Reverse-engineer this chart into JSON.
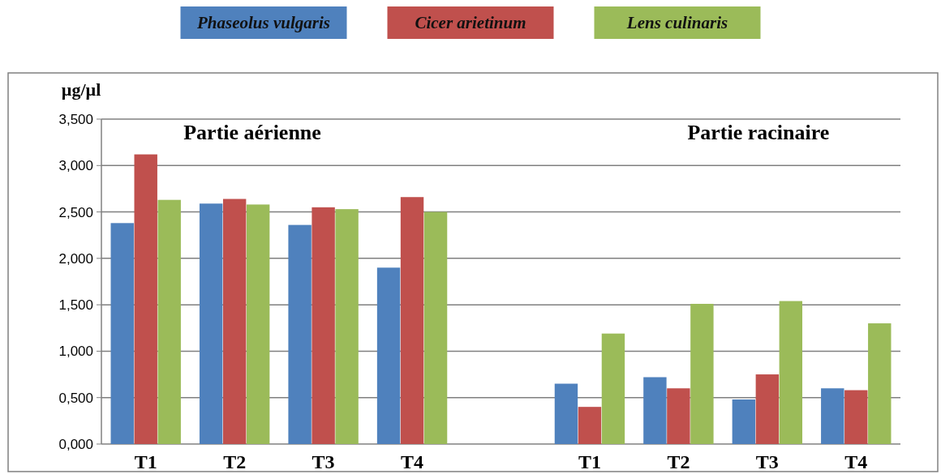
{
  "chart_data": {
    "type": "bar",
    "ylabel": "µg/µl",
    "categories": [
      "T1",
      "T2",
      "T3",
      "T4",
      null,
      "T1",
      "T2",
      "T3",
      "T4"
    ],
    "series": [
      {
        "name": "Phaseolus vulgaris",
        "color": "#4f81bd",
        "values": [
          2.38,
          2.59,
          2.36,
          1.9,
          null,
          0.65,
          0.72,
          0.48,
          0.6
        ]
      },
      {
        "name": "Cicer arietinum",
        "color": "#c0504d",
        "values": [
          3.12,
          2.64,
          2.55,
          2.66,
          null,
          0.4,
          0.6,
          0.75,
          0.58
        ]
      },
      {
        "name": "Lens culinaris",
        "color": "#9bbb59",
        "values": [
          2.63,
          2.58,
          2.53,
          2.5,
          null,
          1.19,
          1.51,
          1.54,
          1.3
        ]
      }
    ],
    "ylim": [
      0,
      3.5
    ],
    "yticks": [
      {
        "value": 0,
        "label": "0,000"
      },
      {
        "value": 0.5,
        "label": "0,500"
      },
      {
        "value": 1,
        "label": "1,000"
      },
      {
        "value": 1.5,
        "label": "1,500"
      },
      {
        "value": 2,
        "label": "2,000"
      },
      {
        "value": 2.5,
        "label": "2,500"
      },
      {
        "value": 3,
        "label": "3,000"
      },
      {
        "value": 3.5,
        "label": "3,500"
      }
    ],
    "grid": "y",
    "legend": "top",
    "annotations": [
      "Partie aérienne",
      "Partie racinaire"
    ]
  }
}
